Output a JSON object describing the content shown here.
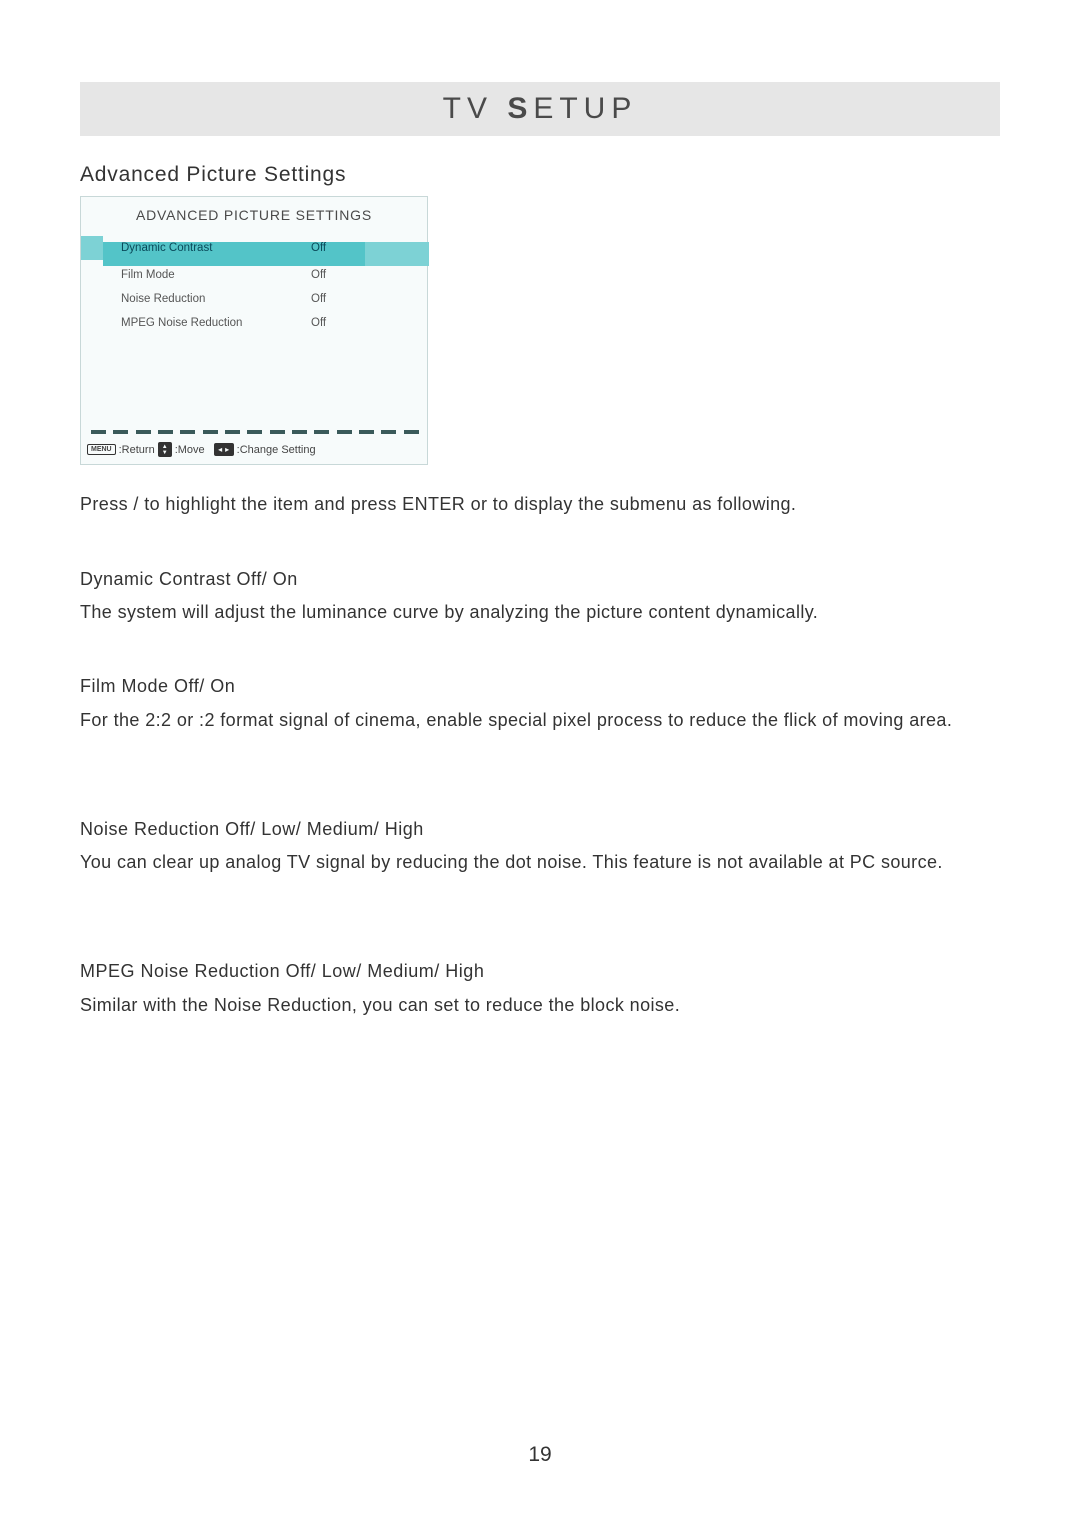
{
  "header": {
    "prefix": "TV ",
    "bold": "S",
    "suffix": "ETUP"
  },
  "section_title": "Advanced Picture Settings",
  "osd": {
    "title": "ADVANCED PICTURE SETTINGS",
    "rows": [
      {
        "label": "Dynamic Contrast",
        "value": "Off",
        "highlighted": true
      },
      {
        "label": "Film Mode",
        "value": "Off",
        "highlighted": false
      },
      {
        "label": "Noise Reduction",
        "value": "Off",
        "highlighted": false
      },
      {
        "label": "MPEG Noise Reduction",
        "value": "Off",
        "highlighted": false
      }
    ],
    "dashes_count": 15,
    "footer": {
      "menu_chip": "MENU",
      "return_label": ":Return",
      "move_label": ":Move",
      "change_label": ":Change Setting"
    },
    "background_color": "#f7fbfb",
    "border_color": "#c8d8d8",
    "highlight_mid_color": "#53c4c8",
    "highlight_side_color": "#7dd2d5"
  },
  "instr1": "Press    /    to highlight the item and press ENTER or     to display the submenu as following.",
  "sections": [
    {
      "heading": "Dynamic Contrast Off/ On",
      "body": "The system will adjust the luminance curve by analyzing the picture content dynamically."
    },
    {
      "heading": "Film Mode Off/ On",
      "body": "For the 2:2 or :2 format signal of cinema, enable special pixel process to reduce the flick of moving area."
    },
    {
      "heading": "Noise Reduction Off/ Low/ Medium/ High",
      "body": "You can clear up analog TV signal by reducing the dot noise. This feature is not available at PC source."
    },
    {
      "heading": "MPEG Noise Reduction Off/ Low/ Medium/ High",
      "body": "Similar with the Noise Reduction, you can set to reduce the block noise."
    }
  ],
  "page_number": "19"
}
